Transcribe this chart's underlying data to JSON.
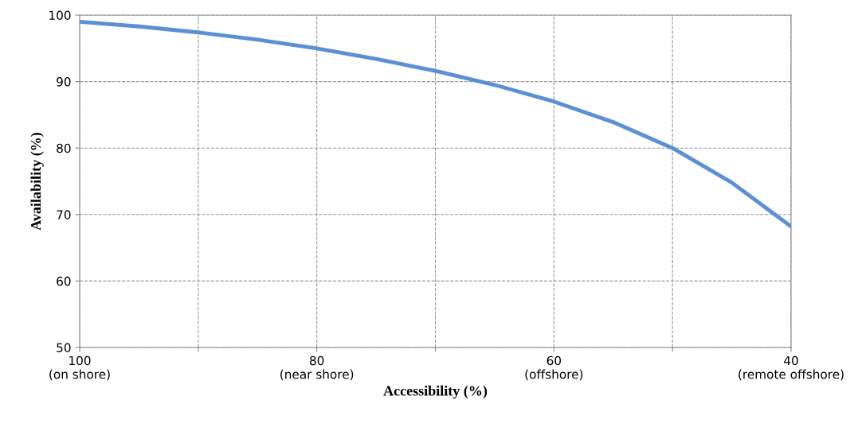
{
  "chart_data": {
    "type": "line",
    "xlabel": "Accessibility (%)",
    "ylabel": "Availability (%)",
    "x": [
      100,
      95,
      90,
      85,
      80,
      75,
      70,
      65,
      60,
      55,
      50,
      45,
      40
    ],
    "series": [
      {
        "color": "#5b8fd6",
        "values": [
          99.0,
          98.3,
          97.4,
          96.3,
          95.0,
          93.4,
          91.6,
          89.5,
          87.0,
          83.9,
          80.0,
          74.8,
          68.2
        ]
      }
    ],
    "xlim": [
      100,
      40
    ],
    "ylim": [
      50,
      100
    ],
    "xticks": [
      {
        "value": 100,
        "label": "100\n(on shore)"
      },
      {
        "value": 90,
        "label": null
      },
      {
        "value": 80,
        "label": "80\n(near shore)"
      },
      {
        "value": 70,
        "label": null
      },
      {
        "value": 60,
        "label": "60\n(offshore)"
      },
      {
        "value": 50,
        "label": null
      },
      {
        "value": 40,
        "label": "40\n(remote offshore)"
      }
    ],
    "yticks": [
      50,
      60,
      70,
      80,
      90,
      100
    ],
    "grid": true,
    "legend": false,
    "marker": "none",
    "line_style": "solid"
  }
}
